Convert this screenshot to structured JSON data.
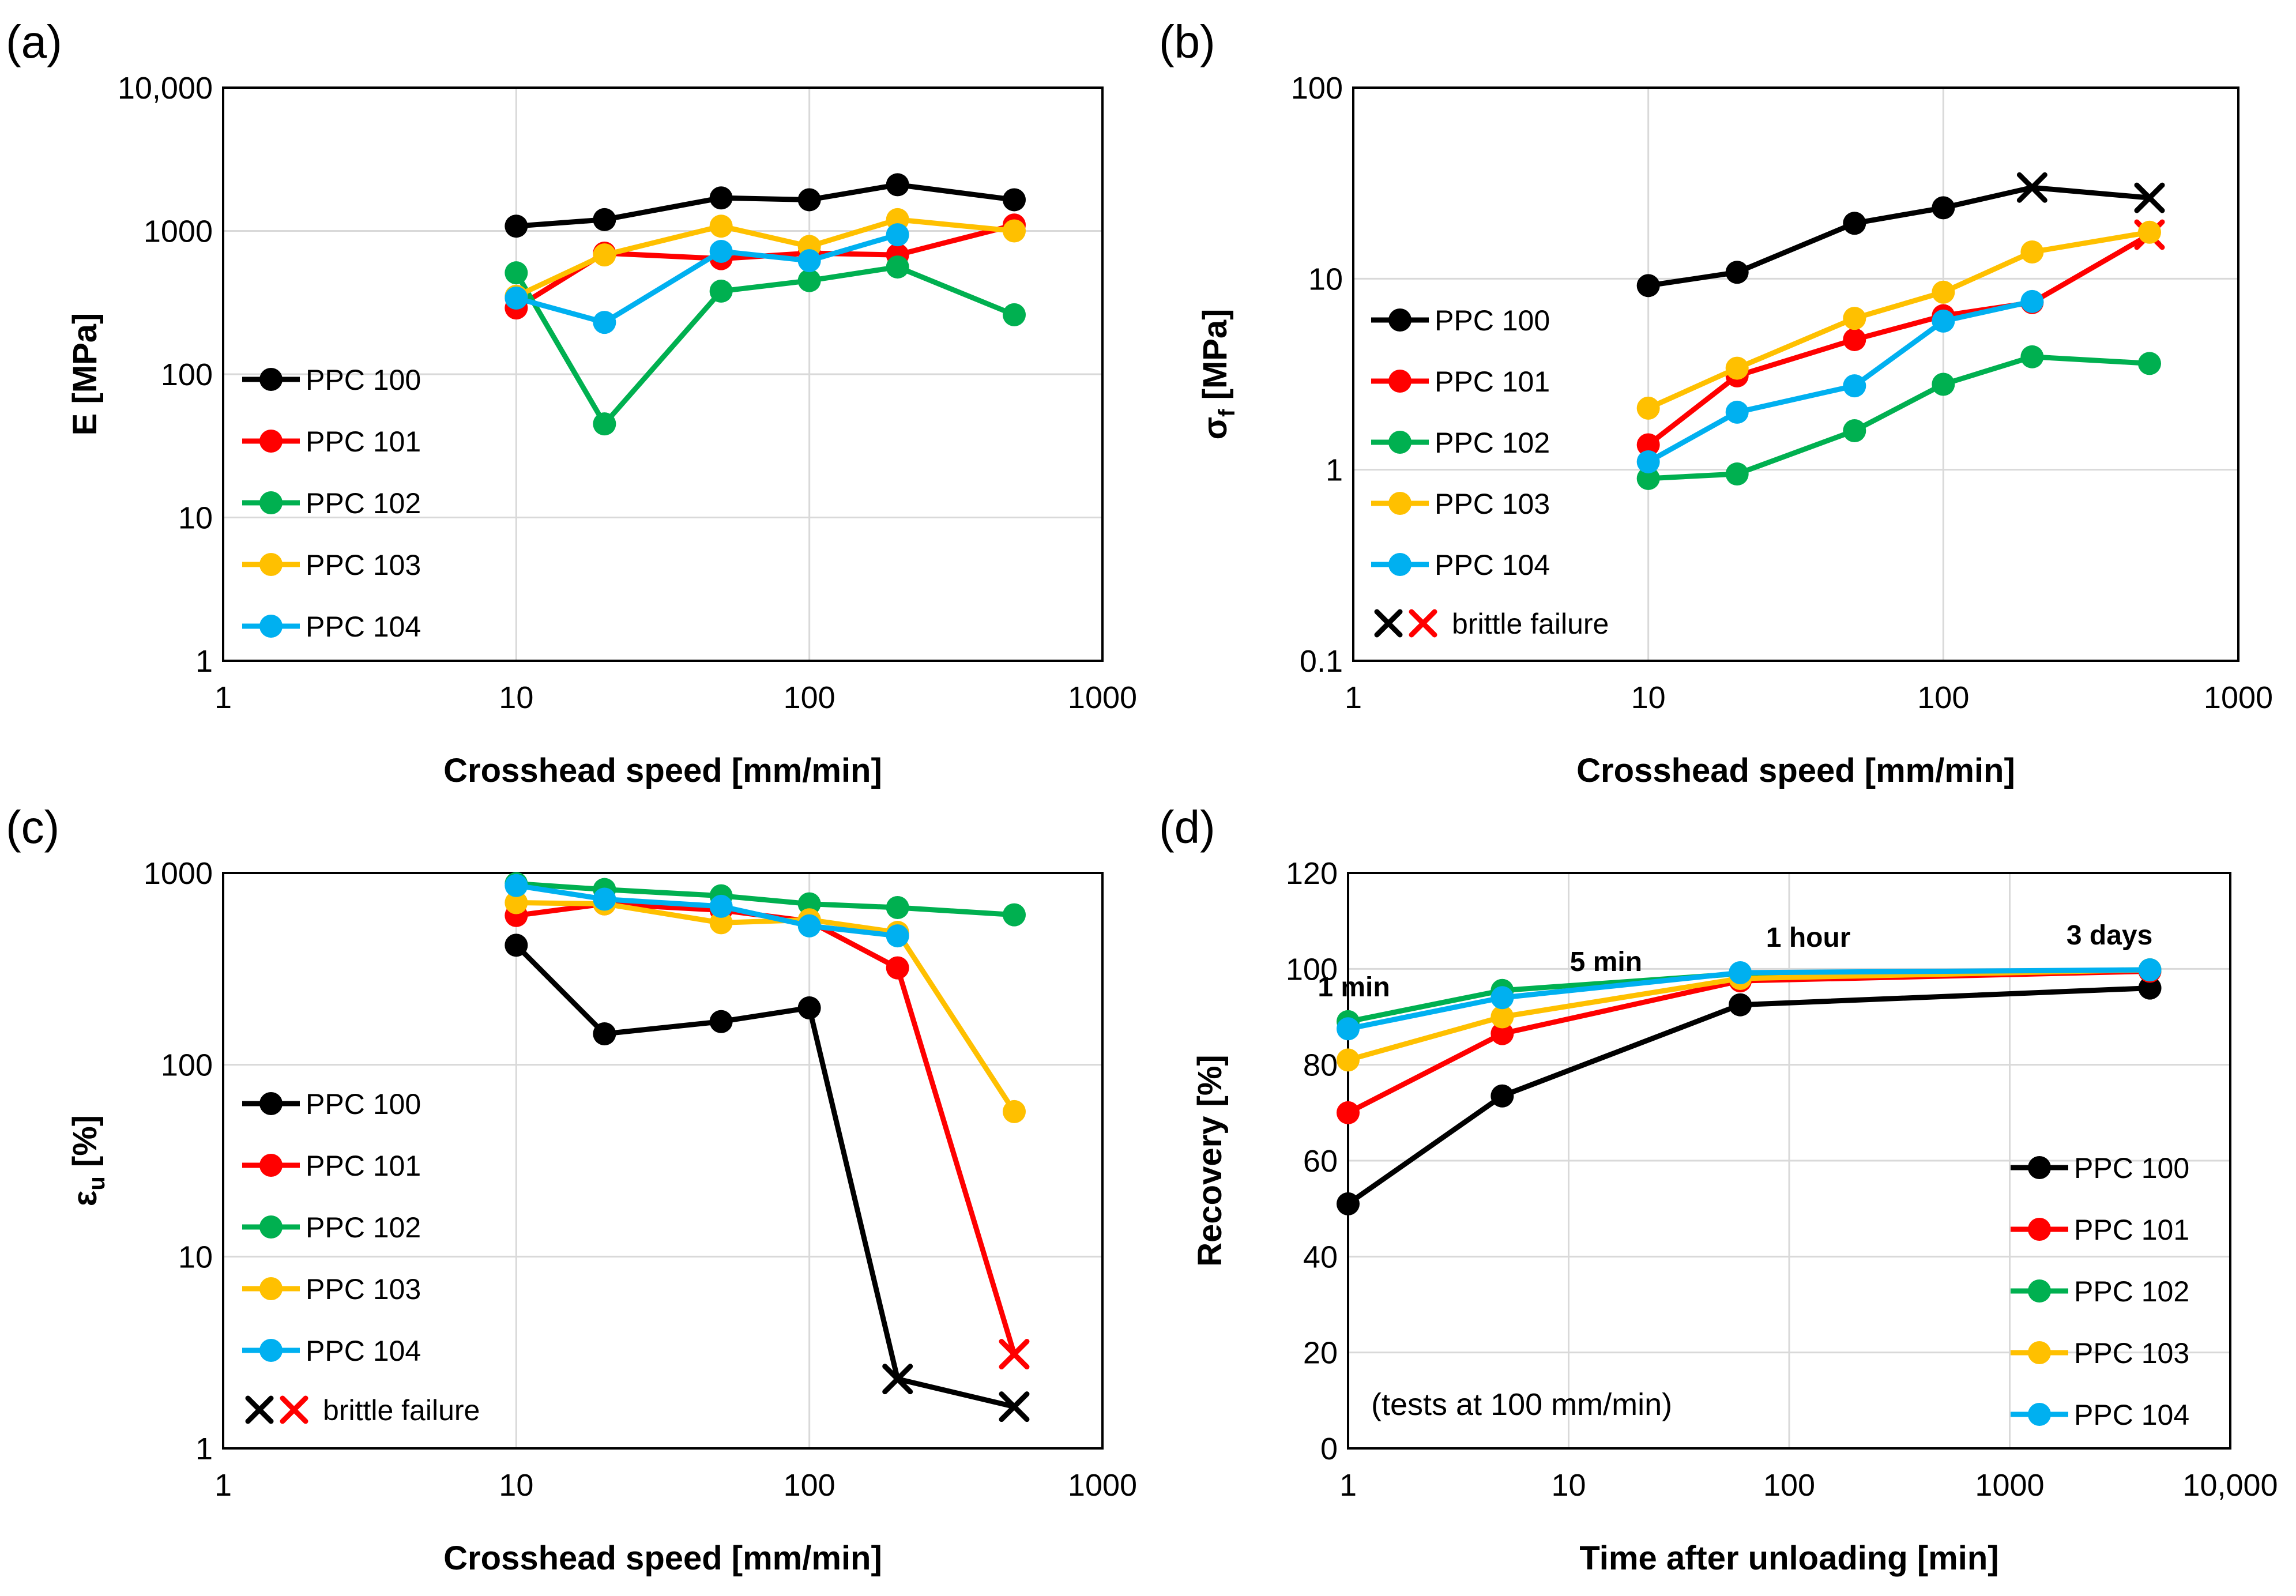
{
  "chart_data": [
    {
      "panel": "(a)",
      "type": "line",
      "xscale": "log",
      "yscale": "log",
      "xlim": [
        1,
        1000
      ],
      "ylim": [
        1,
        10000
      ],
      "xticks": [
        "1",
        "10",
        "100",
        "1000"
      ],
      "yticks": [
        "1",
        "10",
        "100",
        "1000",
        "10,000"
      ],
      "xlabel": "Crosshead speed [mm/min]",
      "ylabel": "E [MPa]",
      "legend_position": "middle-left",
      "x": [
        10,
        20,
        50,
        100,
        200,
        500
      ],
      "series": [
        {
          "name": "PPC 100",
          "color": "#000000",
          "values": [
            1080,
            1200,
            1700,
            1650,
            2100,
            1650
          ]
        },
        {
          "name": "PPC 101",
          "color": "#FF0000",
          "values": [
            290,
            700,
            640,
            700,
            680,
            1100
          ]
        },
        {
          "name": "PPC 102",
          "color": "#00B050",
          "values": [
            510,
            45,
            380,
            450,
            560,
            260
          ]
        },
        {
          "name": "PPC 103",
          "color": "#FFC000",
          "values": [
            350,
            680,
            1080,
            780,
            1200,
            1000
          ]
        },
        {
          "name": "PPC 104",
          "color": "#00B0F0",
          "values": [
            340,
            230,
            720,
            620,
            940,
            null
          ]
        }
      ]
    },
    {
      "panel": "(b)",
      "type": "line",
      "xscale": "log",
      "yscale": "log",
      "xlim": [
        1,
        1000
      ],
      "ylim": [
        0.1,
        100
      ],
      "xticks": [
        "1",
        "10",
        "100",
        "1000"
      ],
      "yticks": [
        "0.1",
        "1",
        "10",
        "100"
      ],
      "xlabel": "Crosshead speed [mm/min]",
      "ylabel_main": "σ",
      "ylabel_sub": "f",
      "ylabel_rest": " [MPa]",
      "legend_position": "middle-left",
      "brittle_label": "brittle failure",
      "x": [
        10,
        20,
        50,
        100,
        200,
        500
      ],
      "series": [
        {
          "name": "PPC 100",
          "color": "#000000",
          "values": [
            9.2,
            10.8,
            19.5,
            23.5,
            30,
            26.5
          ],
          "brittle": [
            4,
            5
          ]
        },
        {
          "name": "PPC 101",
          "color": "#FF0000",
          "values": [
            1.35,
            3.1,
            4.8,
            6.4,
            7.5,
            17
          ],
          "brittle": [
            5
          ]
        },
        {
          "name": "PPC 102",
          "color": "#00B050",
          "values": [
            0.9,
            0.95,
            1.6,
            2.8,
            3.9,
            3.6
          ],
          "brittle": []
        },
        {
          "name": "PPC 103",
          "color": "#FFC000",
          "values": [
            2.1,
            3.4,
            6.2,
            8.5,
            13.8,
            17.5
          ],
          "brittle": []
        },
        {
          "name": "PPC 104",
          "color": "#00B0F0",
          "values": [
            1.1,
            2.0,
            2.75,
            6.0,
            7.6,
            null
          ],
          "brittle": []
        }
      ]
    },
    {
      "panel": "(c)",
      "type": "line",
      "xscale": "log",
      "yscale": "log",
      "xlim": [
        1,
        1000
      ],
      "ylim": [
        1,
        1000
      ],
      "xticks": [
        "1",
        "10",
        "100",
        "1000"
      ],
      "yticks": [
        "1",
        "10",
        "100",
        "1000"
      ],
      "xlabel": "Crosshead speed [mm/min]",
      "ylabel_main": "ε",
      "ylabel_sub": "u",
      "ylabel_rest": " [%]",
      "legend_position": "middle-left",
      "brittle_label": "brittle failure",
      "x": [
        10,
        20,
        50,
        100,
        200,
        500
      ],
      "series": [
        {
          "name": "PPC 100",
          "color": "#000000",
          "values": [
            420,
            145,
            168,
            198,
            2.3,
            1.65
          ],
          "brittle": [
            4,
            5
          ]
        },
        {
          "name": "PPC 101",
          "color": "#FF0000",
          "values": [
            600,
            690,
            640,
            560,
            320,
            3.1
          ],
          "brittle": [
            5
          ]
        },
        {
          "name": "PPC 102",
          "color": "#00B050",
          "values": [
            880,
            820,
            760,
            690,
            660,
            605
          ],
          "brittle": []
        },
        {
          "name": "PPC 103",
          "color": "#FFC000",
          "values": [
            700,
            690,
            550,
            570,
            490,
            57
          ],
          "brittle": []
        },
        {
          "name": "PPC 104",
          "color": "#00B0F0",
          "values": [
            860,
            730,
            670,
            530,
            470,
            null
          ],
          "brittle": []
        }
      ]
    },
    {
      "panel": "(d)",
      "type": "line",
      "xscale": "log",
      "yscale": "linear",
      "xlim": [
        1,
        10000
      ],
      "ylim": [
        0,
        120
      ],
      "xticks": [
        "1",
        "10",
        "100",
        "1000",
        "10,000"
      ],
      "yticks": [
        "0",
        "20",
        "40",
        "60",
        "80",
        "100",
        "120"
      ],
      "xlabel": "Time after unloading [min]",
      "ylabel": "Recovery [%]",
      "legend_position": "bottom-right",
      "note": "(tests at 100 mm/min)",
      "x": [
        1,
        5,
        60,
        4320
      ],
      "time_annotations": [
        "1 min",
        "5 min",
        "1 hour",
        "3 days"
      ],
      "series": [
        {
          "name": "PPC 100",
          "color": "#000000",
          "values": [
            51,
            73.5,
            92.5,
            96
          ]
        },
        {
          "name": "PPC 101",
          "color": "#FF0000",
          "values": [
            70,
            86.5,
            97.5,
            99.5
          ]
        },
        {
          "name": "PPC 102",
          "color": "#00B050",
          "values": [
            89,
            95.5,
            99,
            99.8
          ]
        },
        {
          "name": "PPC 103",
          "color": "#FFC000",
          "values": [
            81,
            90,
            98,
            99.8
          ]
        },
        {
          "name": "PPC 104",
          "color": "#00B0F0",
          "values": [
            87.5,
            94,
            99.2,
            99.8
          ]
        }
      ]
    }
  ]
}
